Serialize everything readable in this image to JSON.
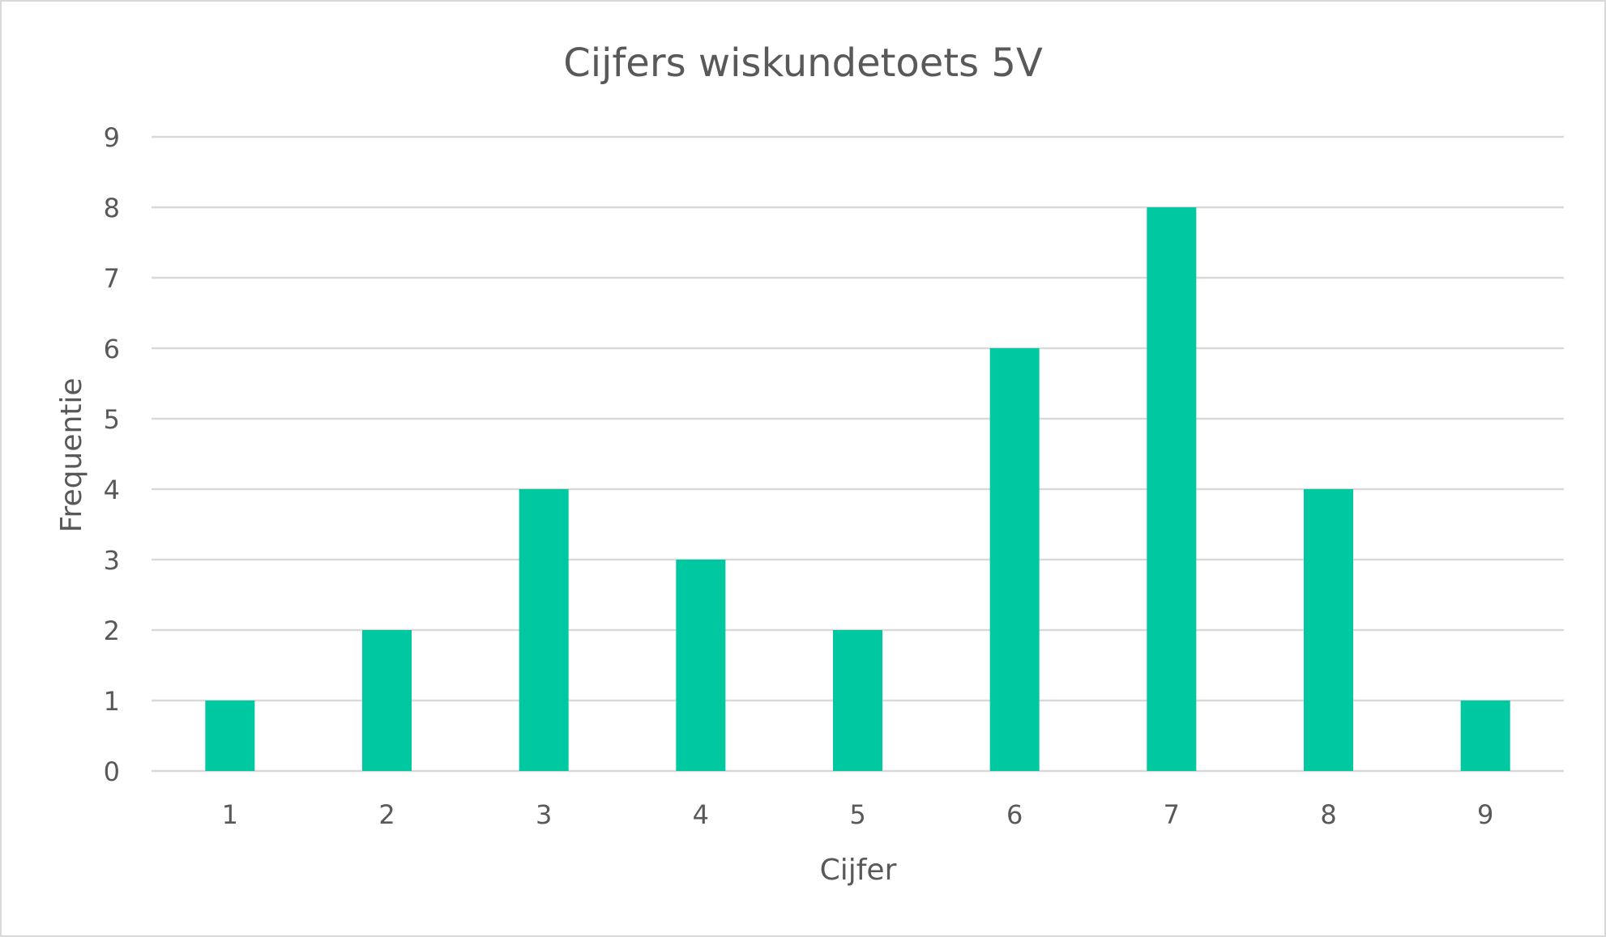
{
  "chart_data": {
    "type": "bar",
    "title": "Cijfers wiskundetoets 5V",
    "xlabel": "Cijfer",
    "ylabel": "Frequentie",
    "categories": [
      "1",
      "2",
      "3",
      "4",
      "5",
      "6",
      "7",
      "8",
      "9"
    ],
    "values": [
      1,
      2,
      4,
      3,
      2,
      6,
      8,
      4,
      1
    ],
    "ylim": [
      0,
      9
    ],
    "yticks": [
      "0",
      "1",
      "2",
      "3",
      "4",
      "5",
      "6",
      "7",
      "8",
      "9"
    ],
    "grid": true,
    "legend": "none",
    "bar_color": "#00C8A0",
    "grid_color": "#D9D9D9"
  }
}
